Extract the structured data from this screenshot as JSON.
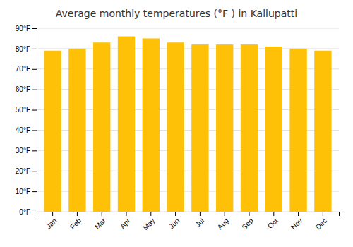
{
  "chart_data": {
    "type": "bar",
    "title": "Average monthly temperatures (°F ) in Kallupatti",
    "categories": [
      "Jan",
      "Feb",
      "Mar",
      "Apr",
      "May",
      "Jun",
      "Jul",
      "Aug",
      "Sep",
      "Oct",
      "Nov",
      "Dec"
    ],
    "values": [
      79,
      80,
      83,
      86,
      85,
      83,
      82,
      82,
      82,
      81,
      80,
      79
    ],
    "color": "#FFC107",
    "ylim": [
      0,
      90
    ],
    "yticks": [
      {
        "value": 0,
        "label": "0°F"
      },
      {
        "value": 10,
        "label": "10°F"
      },
      {
        "value": 20,
        "label": "20°F"
      },
      {
        "value": 30,
        "label": "30°F"
      },
      {
        "value": 40,
        "label": "40°F"
      },
      {
        "value": 50,
        "label": "50°F"
      },
      {
        "value": 60,
        "label": "60°F"
      },
      {
        "value": 70,
        "label": "70°F"
      },
      {
        "value": 80,
        "label": "80°F"
      },
      {
        "value": 90,
        "label": "90°F"
      }
    ],
    "grid": true
  }
}
